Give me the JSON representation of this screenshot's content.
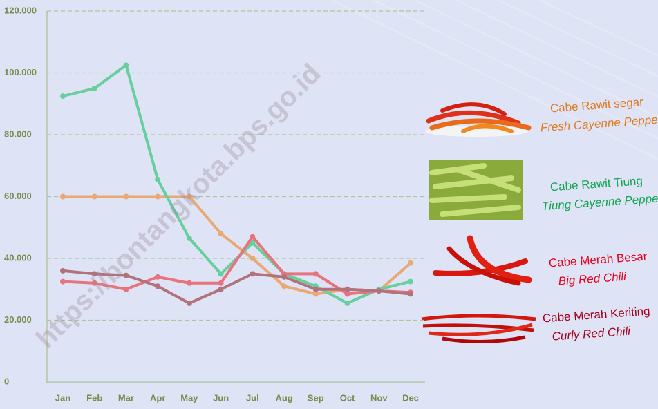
{
  "chart_data": {
    "type": "line",
    "watermark": "https://bontangkota.bps.go.id",
    "categories": [
      "Jan",
      "Feb",
      "Mar",
      "Apr",
      "May",
      "Jun",
      "Jul",
      "Aug",
      "Sep",
      "Oct",
      "Nov",
      "Dec"
    ],
    "ylim": [
      0,
      120000
    ],
    "yticks": [
      0,
      {
        "value": 20000,
        "label": "20.000"
      },
      {
        "value": 40000,
        "label": "40.000"
      },
      {
        "value": 60000,
        "label": "60.000"
      },
      {
        "value": 80000,
        "label": "80.000"
      },
      {
        "value": 100000,
        "label": "100.000"
      },
      {
        "value": 120000,
        "label": "120.000"
      }
    ],
    "grid": true,
    "series": [
      {
        "name": "Cabe Rawit segar",
        "english_name": "Fresh Cayenne Pepper",
        "color": "#eaa873",
        "label_color": "#e07a1e",
        "values": [
          60000,
          60000,
          60000,
          60000,
          60000,
          48000,
          40000,
          31000,
          28500,
          30000,
          29500,
          38500
        ]
      },
      {
        "name": "Cabe Rawit Tiung",
        "english_name": "Tiung Cayenne Pepper",
        "color": "#66cf9b",
        "label_color": "#12a552",
        "values": [
          92500,
          95000,
          102500,
          65500,
          46500,
          35000,
          45000,
          35000,
          31000,
          25500,
          30000,
          32500
        ]
      },
      {
        "name": "Cabe Merah Besar",
        "english_name": "Big Red Chili",
        "color": "#e8737c",
        "label_color": "#e8001a",
        "values": [
          32500,
          32000,
          30000,
          34000,
          32000,
          32000,
          47000,
          35000,
          35000,
          28500,
          29500,
          29000
        ]
      },
      {
        "name": "Cabe Merah Keriting",
        "english_name": "Curly Red Chili",
        "color": "#b2727b",
        "label_color": "#a3001a",
        "values": [
          36000,
          35000,
          34500,
          31000,
          25500,
          30000,
          35000,
          34000,
          30000,
          30000,
          29500,
          28500
        ]
      }
    ]
  }
}
